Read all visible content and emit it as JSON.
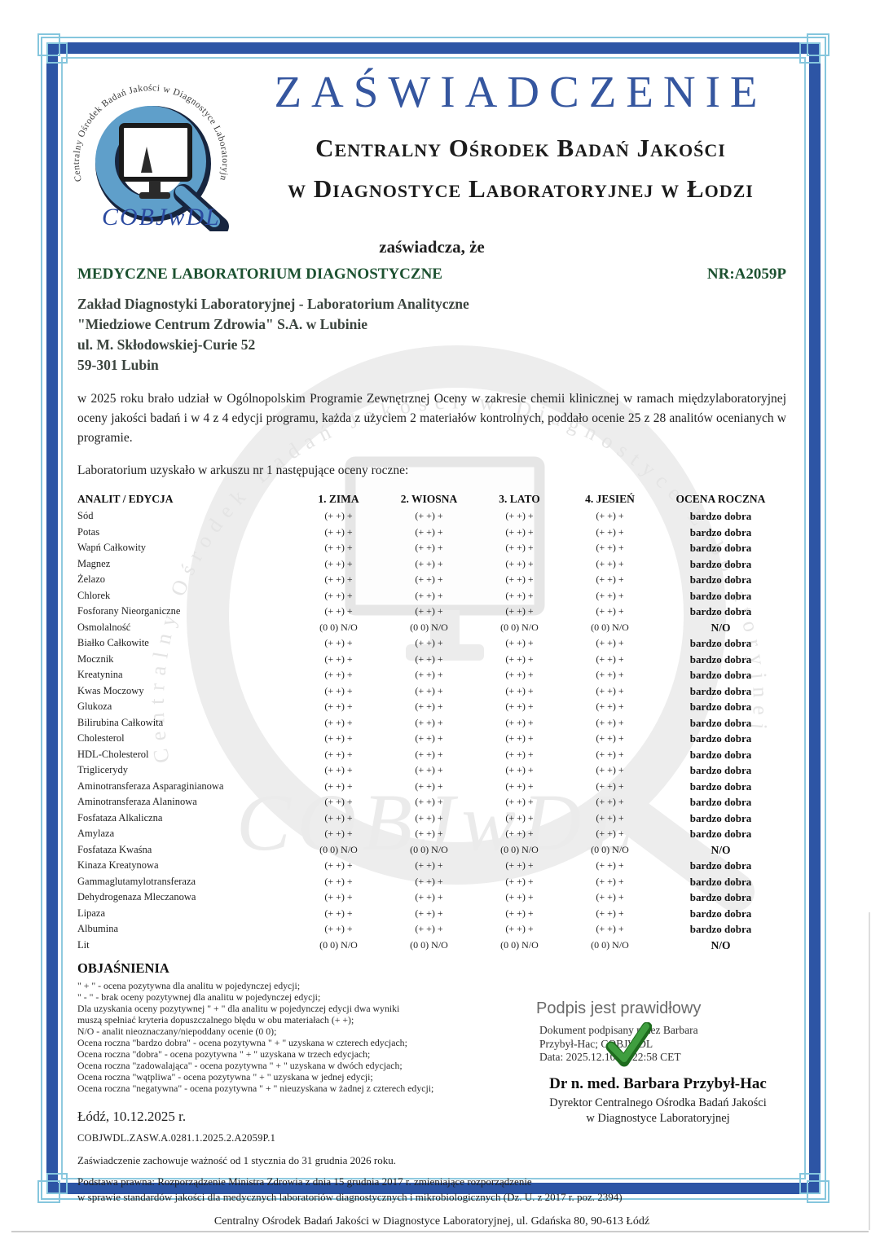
{
  "colors": {
    "title_blue": "#35569f",
    "frame_blue": "#2d55a5",
    "frame_cyan": "#85c6dd",
    "heading_green": "#1c5130",
    "check_green": "#2f8f2f",
    "logo_blue": "#5f9fca"
  },
  "logo": {
    "arc_text": "Centralny Ośrodek Badań Jakości w Diagnostyce Laboratoryjnej",
    "script": "COBJwDL"
  },
  "watermark": {
    "arc_text": "Centralny Ośrodek Badań Jakości w Diagnostyce Laboratoryjnej",
    "script": "COBJwDL"
  },
  "header": {
    "title": "ZAŚWIADCZENIE",
    "org_line1": "Centralny Ośrodek Badań Jakości",
    "org_line2": "w Diagnostyce Laboratoryjnej w Łodzi",
    "certifies": "zaświadcza, że"
  },
  "lab": {
    "type": "MEDYCZNE LABORATORIUM DIAGNOSTYCZNE",
    "number": "NR:A2059P",
    "name1": "Zakład Diagnostyki Laboratoryjnej - Laboratorium Analityczne",
    "name2": "\"Miedziowe Centrum Zdrowia\" S.A. w Lubinie",
    "street": "ul. M. Skłodowskiej-Curie 52",
    "city": "59-301 Lubin"
  },
  "intro": {
    "p1": "w 2025 roku brało udział w Ogólnopolskim Programie Zewnętrznej Oceny w zakresie chemii klinicznej w ramach międzylaboratoryjnej oceny jakości badań i w 4 z 4 edycji programu, każda z użyciem 2 materiałów kontrolnych, poddało ocenie 25 z 28 analitów ocenianych w programie.",
    "p2": "Laboratorium uzyskało w arkuszu nr 1 następujące oceny roczne:"
  },
  "table": {
    "headers": [
      "ANALIT / EDYCJA",
      "1. ZIMA",
      "2. WIOSNA",
      "3. LATO",
      "4. JESIEŃ",
      "OCENA ROCZNA"
    ],
    "rows": [
      [
        "Sód",
        "(+ +) +",
        "(+ +) +",
        "(+ +) +",
        "(+ +) +",
        "bardzo dobra"
      ],
      [
        "Potas",
        "(+ +) +",
        "(+ +) +",
        "(+ +) +",
        "(+ +) +",
        "bardzo dobra"
      ],
      [
        "Wapń Całkowity",
        "(+ +) +",
        "(+ +) +",
        "(+ +) +",
        "(+ +) +",
        "bardzo dobra"
      ],
      [
        "Magnez",
        "(+ +) +",
        "(+ +) +",
        "(+ +) +",
        "(+ +) +",
        "bardzo dobra"
      ],
      [
        "Żelazo",
        "(+ +) +",
        "(+ +) +",
        "(+ +) +",
        "(+ +) +",
        "bardzo dobra"
      ],
      [
        "Chlorek",
        "(+ +) +",
        "(+ +) +",
        "(+ +) +",
        "(+ +) +",
        "bardzo dobra"
      ],
      [
        "Fosforany Nieorganiczne",
        "(+ +) +",
        "(+ +) +",
        "(+ +) +",
        "(+ +) +",
        "bardzo dobra"
      ],
      [
        "Osmolalność",
        "(0 0) N/O",
        "(0 0) N/O",
        "(0 0) N/O",
        "(0 0) N/O",
        "N/O"
      ],
      [
        "Białko Całkowite",
        "(+ +) +",
        "(+ +) +",
        "(+ +) +",
        "(+ +) +",
        "bardzo dobra"
      ],
      [
        "Mocznik",
        "(+ +) +",
        "(+ +) +",
        "(+ +) +",
        "(+ +) +",
        "bardzo dobra"
      ],
      [
        "Kreatynina",
        "(+ +) +",
        "(+ +) +",
        "(+ +) +",
        "(+ +) +",
        "bardzo dobra"
      ],
      [
        "Kwas Moczowy",
        "(+ +) +",
        "(+ +) +",
        "(+ +) +",
        "(+ +) +",
        "bardzo dobra"
      ],
      [
        "Glukoza",
        "(+ +) +",
        "(+ +) +",
        "(+ +) +",
        "(+ +) +",
        "bardzo dobra"
      ],
      [
        "Bilirubina Całkowita",
        "(+ +) +",
        "(+ +) +",
        "(+ +) +",
        "(+ +) +",
        "bardzo dobra"
      ],
      [
        "Cholesterol",
        "(+ +) +",
        "(+ +) +",
        "(+ +) +",
        "(+ +) +",
        "bardzo dobra"
      ],
      [
        "HDL-Cholesterol",
        "(+ +) +",
        "(+ +) +",
        "(+ +) +",
        "(+ +) +",
        "bardzo dobra"
      ],
      [
        "Triglicerydy",
        "(+ +) +",
        "(+ +) +",
        "(+ +) +",
        "(+ +) +",
        "bardzo dobra"
      ],
      [
        "Aminotransferaza Asparaginianowa",
        "(+ +) +",
        "(+ +) +",
        "(+ +) +",
        "(+ +) +",
        "bardzo dobra"
      ],
      [
        "Aminotransferaza Alaninowa",
        "(+ +) +",
        "(+ +) +",
        "(+ +) +",
        "(+ +) +",
        "bardzo dobra"
      ],
      [
        "Fosfataza Alkaliczna",
        "(+ +) +",
        "(+ +) +",
        "(+ +) +",
        "(+ +) +",
        "bardzo dobra"
      ],
      [
        "Amylaza",
        "(+ +) +",
        "(+ +) +",
        "(+ +) +",
        "(+ +) +",
        "bardzo dobra"
      ],
      [
        "Fosfataza Kwaśna",
        "(0 0) N/O",
        "(0 0) N/O",
        "(0 0) N/O",
        "(0 0) N/O",
        "N/O"
      ],
      [
        "Kinaza Kreatynowa",
        "(+ +) +",
        "(+ +) +",
        "(+ +) +",
        "(+ +) +",
        "bardzo dobra"
      ],
      [
        "Gammaglutamylotransferaza",
        "(+ +) +",
        "(+ +) +",
        "(+ +) +",
        "(+ +) +",
        "bardzo dobra"
      ],
      [
        "Dehydrogenaza Mleczanowa",
        "(+ +) +",
        "(+ +) +",
        "(+ +) +",
        "(+ +) +",
        "bardzo dobra"
      ],
      [
        "Lipaza",
        "(+ +) +",
        "(+ +) +",
        "(+ +) +",
        "(+ +) +",
        "bardzo dobra"
      ],
      [
        "Albumina",
        "(+ +) +",
        "(+ +) +",
        "(+ +) +",
        "(+ +) +",
        "bardzo dobra"
      ],
      [
        "Lit",
        "(0 0) N/O",
        "(0 0) N/O",
        "(0 0) N/O",
        "(0 0) N/O",
        "N/O"
      ]
    ]
  },
  "legend": {
    "title": "OBJAŚNIENIA",
    "lines": [
      "\" + \" - ocena pozytywna dla analitu w pojedynczej edycji;",
      "\" - \" - brak oceny pozytywnej dla analitu w pojedynczej edycji;",
      "Dla uzyskania oceny pozytywnej \" + \" dla analitu w pojedynczej edycji dwa wyniki",
      "muszą spełniać kryteria dopuszczalnego błędu w obu materiałach (+ +);",
      "N/O - analit nieoznaczany/niepoddany ocenie (0 0);",
      "Ocena roczna \"bardzo dobra\" - ocena pozytywna \" + \" uzyskana w czterech edycjach;",
      "Ocena roczna \"dobra\" - ocena pozytywna \" + \" uzyskana w trzech edycjach;",
      "Ocena roczna \"zadowalająca\" - ocena pozytywna \" + \" uzyskana w dwóch edycjach;",
      "Ocena roczna \"wątpliwa\" - ocena pozytywna \" + \" uzyskana w jednej edycji;",
      "Ocena roczna \"negatywna\" - ocena pozytywna \" + \" nieuzyskana w żadnej z czterech edycji;"
    ]
  },
  "signature": {
    "valid_label": "Podpis jest prawidłowy",
    "signed_line1": "Dokument podpisany przez Barbara",
    "signed_line2": "Przybył-Hac; COBJWDL",
    "signed_line3": "Data: 2025.12.10 10:22:58 CET",
    "name": "Dr n. med. Barbara Przybył-Hac",
    "role1": "Dyrektor Centralnego Ośrodka Badań Jakości",
    "role2": "w Diagnostyce Laboratoryjnej"
  },
  "footer": {
    "place_date": "Łódź, 10.12.2025 r.",
    "doc_id": "COBJWDL.ZASW.A.0281.1.2025.2.A2059P.1",
    "validity": "Zaświadczenie zachowuje ważność od 1 stycznia do 31 grudnia 2026 roku.",
    "legal1": "Podstawa prawna: Rozporządzenie Ministra Zdrowia z dnia 15 grudnia 2017 r. zmieniające rozporządzenie",
    "legal2": "w sprawie standardów jakości dla medycznych laboratoriów diagnostycznych i mikrobiologicznych (Dz. U. z 2017 r. poz. 2394)",
    "address": "Centralny Ośrodek Badań Jakości w Diagnostyce Laboratoryjnej, ul. Gdańska 80, 90-613 Łódź"
  }
}
